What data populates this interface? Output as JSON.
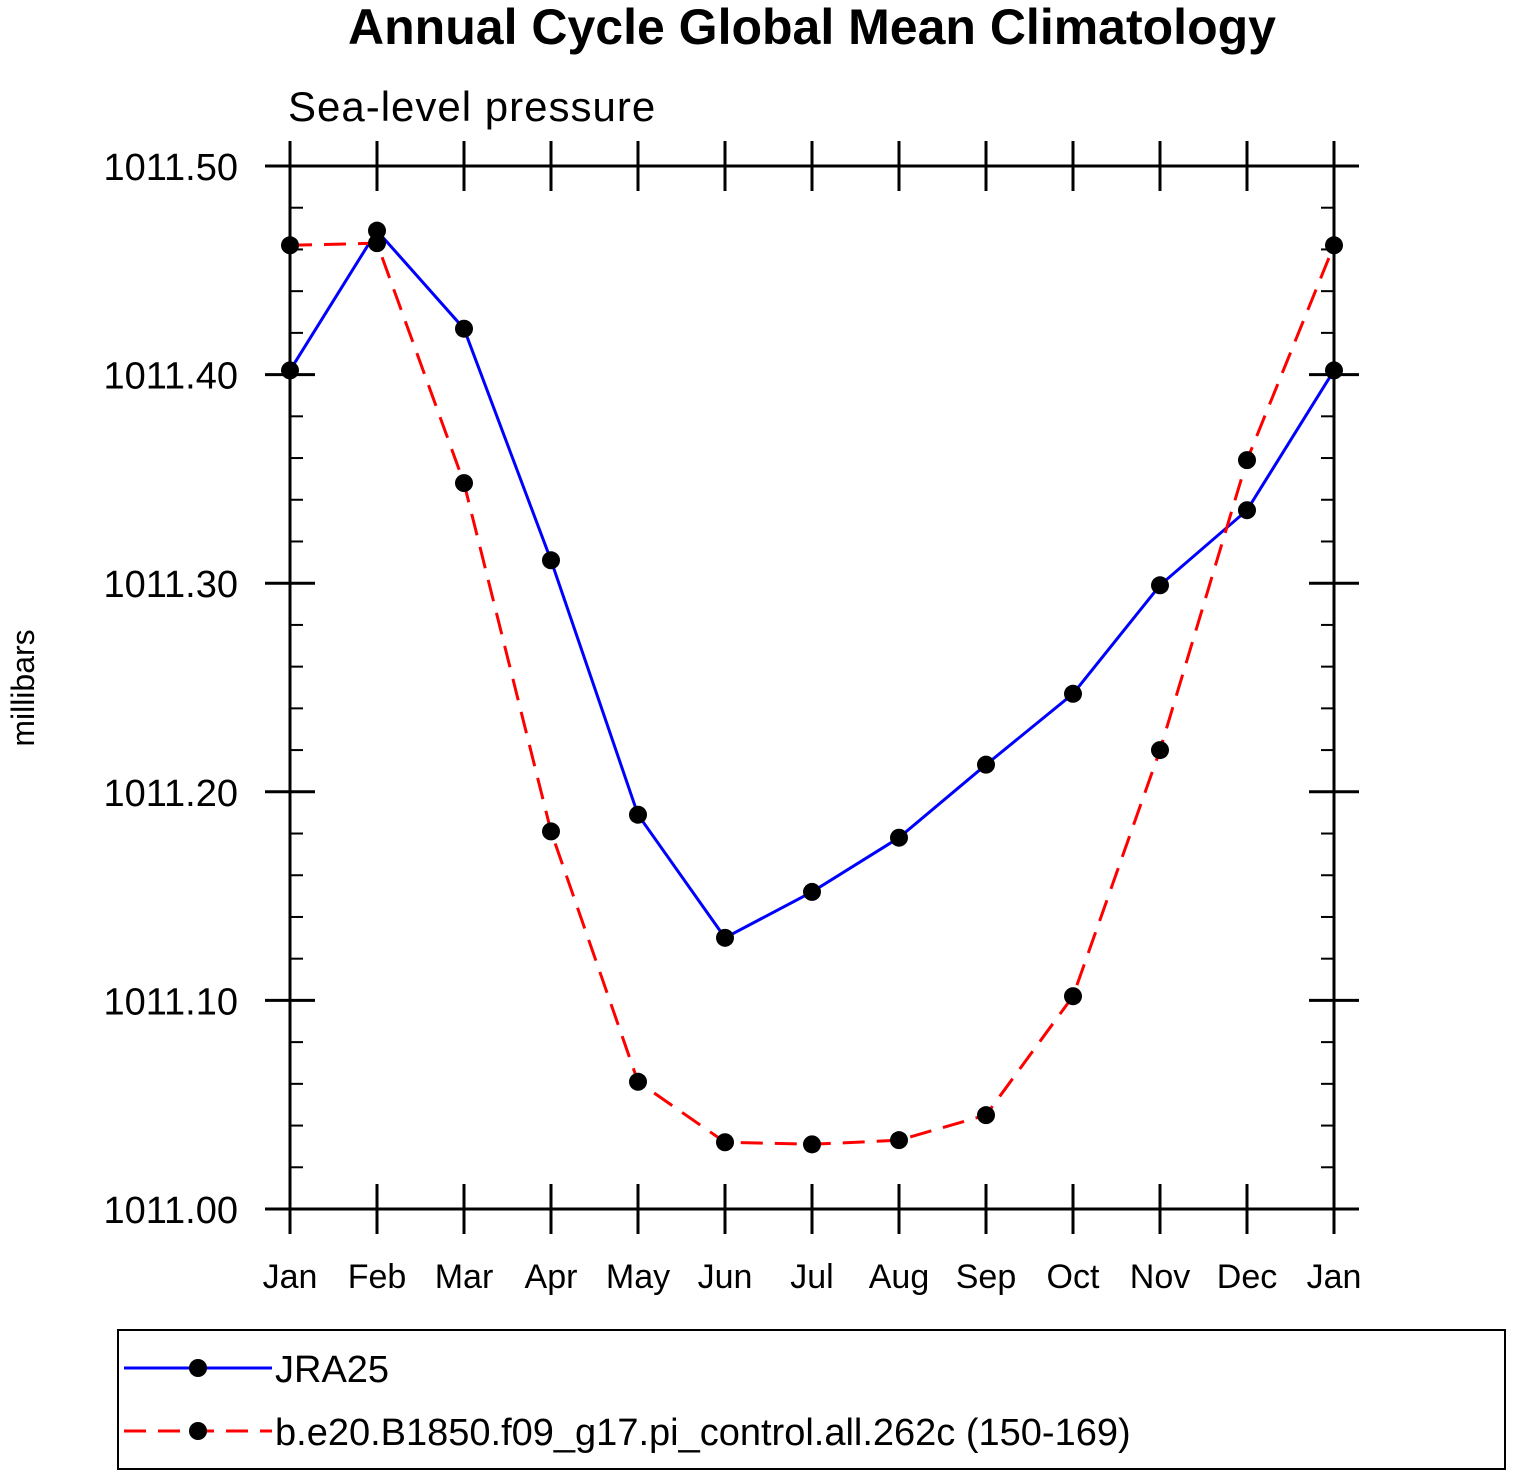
{
  "chart_data": {
    "type": "line",
    "title": "Annual Cycle Global Mean Climatology",
    "subtitle": "Sea-level pressure",
    "ylabel": "millibars",
    "xlabel": "",
    "categories": [
      "Jan",
      "Feb",
      "Mar",
      "Apr",
      "May",
      "Jun",
      "Jul",
      "Aug",
      "Sep",
      "Oct",
      "Nov",
      "Dec",
      "Jan"
    ],
    "ylim": [
      1011.0,
      1011.5
    ],
    "yticks": [
      1011.0,
      1011.1,
      1011.2,
      1011.3,
      1011.4,
      1011.5
    ],
    "ytick_labels": [
      "1011.00",
      "1011.10",
      "1011.20",
      "1011.30",
      "1011.40",
      "1011.50"
    ],
    "legend_position": "bottom",
    "series": [
      {
        "name": "JRA25",
        "color": "#0000ff",
        "dash": "solid",
        "marker": "filled-circle",
        "values": [
          1011.402,
          1011.469,
          1011.422,
          1011.311,
          1011.189,
          1011.13,
          1011.152,
          1011.178,
          1011.213,
          1011.247,
          1011.299,
          1011.335,
          1011.402
        ]
      },
      {
        "name": "b.e20.B1850.f09_g17.pi_control.all.262c (150-169)",
        "color": "#ff0000",
        "dash": "dashed",
        "marker": "filled-circle",
        "values": [
          1011.462,
          1011.463,
          1011.348,
          1011.181,
          1011.061,
          1011.032,
          1011.031,
          1011.033,
          1011.045,
          1011.102,
          1011.22,
          1011.359,
          1011.462
        ]
      }
    ]
  }
}
